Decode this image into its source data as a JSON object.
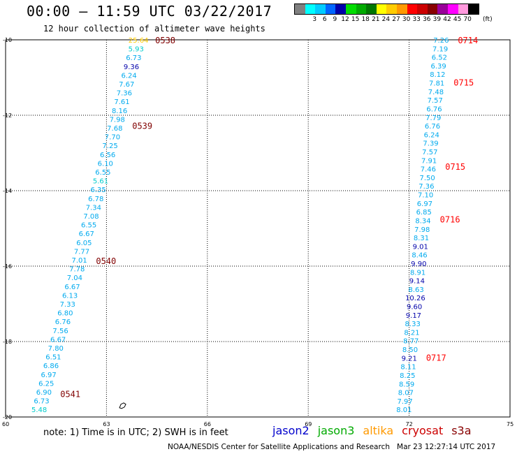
{
  "header": {
    "title": "00:00 – 11:59 UTC 03/22/2017",
    "subtitle": "12 hour collection of altimeter wave heights"
  },
  "legend": {
    "unit_label": "(ft)",
    "bins": [
      {
        "label": "",
        "color": "#808080"
      },
      {
        "label": "3",
        "color": "#00ffff"
      },
      {
        "label": "6",
        "color": "#00ccff"
      },
      {
        "label": "9",
        "color": "#0066ff"
      },
      {
        "label": "12",
        "color": "#0000aa"
      },
      {
        "label": "15",
        "color": "#00dd00"
      },
      {
        "label": "18",
        "color": "#00aa00"
      },
      {
        "label": "21",
        "color": "#007700"
      },
      {
        "label": "24",
        "color": "#ffff00"
      },
      {
        "label": "27",
        "color": "#ffcc00"
      },
      {
        "label": "30",
        "color": "#ff9900"
      },
      {
        "label": "33",
        "color": "#ff0000"
      },
      {
        "label": "36",
        "color": "#cc0000"
      },
      {
        "label": "39",
        "color": "#880000"
      },
      {
        "label": "42",
        "color": "#990099"
      },
      {
        "label": "45",
        "color": "#ff00ff"
      },
      {
        "label": "70",
        "color": "#ff99dd"
      },
      {
        "label": "",
        "color": "#000000"
      }
    ]
  },
  "map": {
    "lon_range": [
      60,
      75
    ],
    "lat_range": [
      -20,
      -10
    ],
    "lon_ticks": [
      "60",
      "63",
      "66",
      "69",
      "72",
      "75"
    ],
    "lat_ticks": [
      "-10",
      "-12",
      "-14",
      "-16",
      "-18",
      "-20"
    ],
    "lat_values": [
      -10,
      -12,
      -14,
      -16,
      -18,
      -20
    ],
    "lon_values": [
      63,
      66,
      69,
      72
    ],
    "island_lon": 63.45,
    "island_lat": -19.7
  },
  "chart_data": {
    "type": "scatter",
    "xlabel": "",
    "ylabel": "",
    "xlim": [
      60,
      75
    ],
    "ylim": [
      -20,
      -10
    ],
    "series": [
      {
        "name": "cryosat",
        "color_label": "#800000",
        "lon_start": 63.95,
        "lat_start": -10.0,
        "lon_end": 61.0,
        "lat_end": -19.8,
        "values": [
          "25.64",
          "5.93",
          "6.73",
          "9.36",
          "6.24",
          "7.67",
          "7.36",
          "7.61",
          "8.16",
          "7.98",
          "7.68",
          "7.70",
          "7.25",
          "6.56",
          "6.10",
          "6.55",
          "5.61",
          "6.35",
          "6.78",
          "7.34",
          "7.08",
          "6.55",
          "6.67",
          "6.05",
          "7.77",
          "7.01",
          "7.78",
          "7.04",
          "6.67",
          "6.13",
          "7.33",
          "6.80",
          "6.76",
          "7.56",
          "6.67",
          "7.80",
          "6.51",
          "6.86",
          "6.97",
          "6.25",
          "6.90",
          "6.73",
          "5.48"
        ],
        "times": [
          {
            "label": "0538",
            "lat": -10.0
          },
          {
            "label": "0539",
            "lat": -12.27
          },
          {
            "label": "0540",
            "lat": -15.85
          },
          {
            "label": "0541",
            "lat": -19.38
          }
        ]
      },
      {
        "name": "s3a",
        "color_label": "#ff0000",
        "lon_start": 72.95,
        "lat_start": -10.0,
        "lon_end": 71.85,
        "lat_end": -19.8,
        "values": [
          "7.26",
          "7.19",
          "6.52",
          "6.39",
          "8.12",
          "7.81",
          "7.48",
          "7.57",
          "6.76",
          "7.79",
          "6.76",
          "6.24",
          "7.39",
          "7.57",
          "7.91",
          "7.46",
          "7.50",
          "7.36",
          "7.10",
          "6.97",
          "6.85",
          "8.34",
          "7.98",
          "8.31",
          "9.01",
          "8.46",
          "9.90",
          "8.91",
          "9.14",
          "8.63",
          "10.26",
          "9.60",
          "9.17",
          "8.33",
          "8.21",
          "8.77",
          "8.50",
          "9.21",
          "8.11",
          "8.25",
          "8.59",
          "8.07",
          "7.97",
          "8.01"
        ],
        "times": [
          {
            "label": "0714",
            "lat": -10.0
          },
          {
            "label": "0715",
            "lat": -11.12
          },
          {
            "label": "0715",
            "lat": -13.35
          },
          {
            "label": "0716",
            "lat": -14.75
          },
          {
            "label": "0717",
            "lat": -18.42
          }
        ]
      }
    ]
  },
  "note": "note: 1) Time is in UTC; 2) SWH is in feet",
  "satellites": [
    {
      "name": "jason2",
      "color": "#0000cc"
    },
    {
      "name": "jason3",
      "color": "#00aa00"
    },
    {
      "name": "altika",
      "color": "#ff9900"
    },
    {
      "name": "cryosat",
      "color": "#cc0000"
    },
    {
      "name": "s3a",
      "color": "#880000"
    }
  ],
  "footer": "NOAA/NESDIS Center for Satellite Applications and Research   Mar 23 12:27:14 UTC 2017"
}
